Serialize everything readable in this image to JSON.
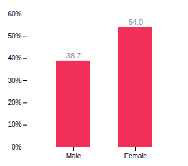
{
  "chart_data": {
    "type": "bar",
    "categories": [
      "Male",
      "Female"
    ],
    "values": [
      38.7,
      54.0
    ],
    "value_labels": [
      "38.7",
      "54.0"
    ],
    "data_labels": true,
    "color": "#f03058",
    "ylim": [
      0,
      60
    ],
    "yticks": [
      {
        "value": 0,
        "label": "0%"
      },
      {
        "value": 10,
        "label": "10%"
      },
      {
        "value": 20,
        "label": "20%"
      },
      {
        "value": 30,
        "label": "30%"
      },
      {
        "value": 40,
        "label": "40%"
      },
      {
        "value": 50,
        "label": "50%"
      },
      {
        "value": 60,
        "label": "60%"
      }
    ],
    "grid": false
  }
}
